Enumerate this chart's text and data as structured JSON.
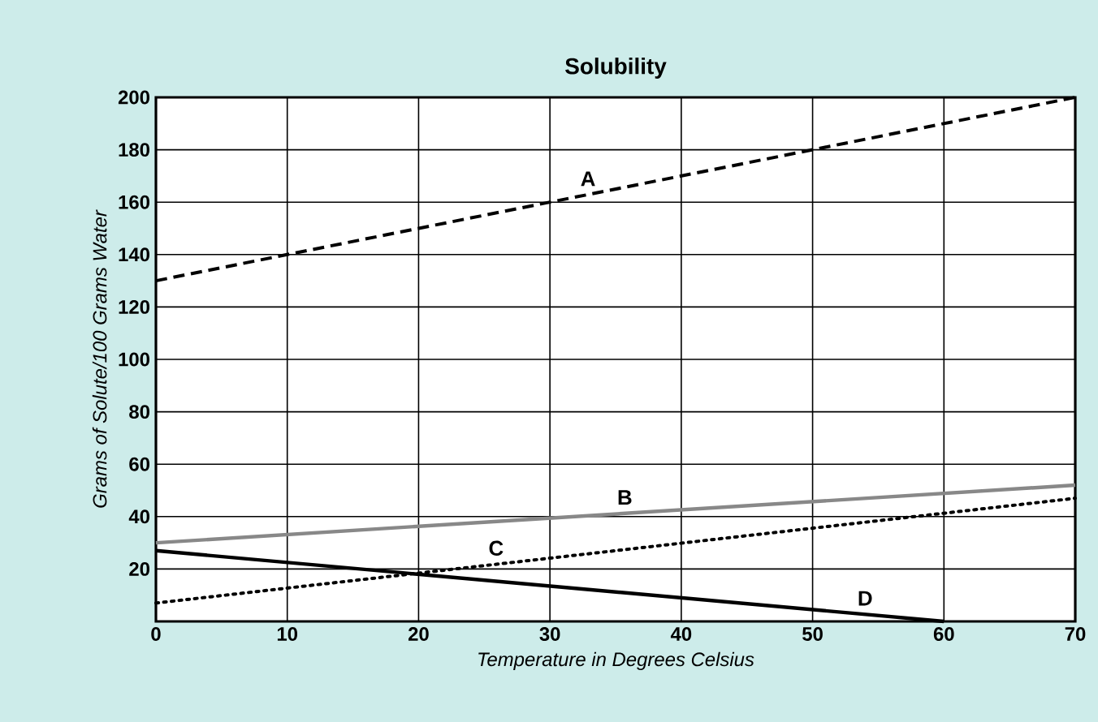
{
  "chart_data": {
    "type": "line",
    "title": "Solubility",
    "xlabel": "Temperature in Degrees Celsius",
    "ylabel": "Grams of Solute/100 Grams Water",
    "xlim": [
      0,
      70
    ],
    "ylim": [
      0,
      200
    ],
    "xticks": [
      0,
      10,
      20,
      30,
      40,
      50,
      60,
      70
    ],
    "yticks": [
      20,
      40,
      60,
      80,
      100,
      120,
      140,
      160,
      180,
      200
    ],
    "grid": true,
    "series": [
      {
        "name": "A",
        "color": "#000000",
        "line_style": "dashed",
        "x": [
          0,
          70
        ],
        "values": [
          130,
          200
        ]
      },
      {
        "name": "B",
        "color": "#888888",
        "line_style": "solid",
        "x": [
          0,
          70
        ],
        "values": [
          30,
          52
        ]
      },
      {
        "name": "C",
        "color": "#000000",
        "line_style": "dotted",
        "x": [
          0,
          70
        ],
        "values": [
          7,
          47
        ]
      },
      {
        "name": "D",
        "color": "#000000",
        "line_style": "solid",
        "x": [
          0,
          60
        ],
        "values": [
          27,
          0
        ]
      }
    ]
  }
}
